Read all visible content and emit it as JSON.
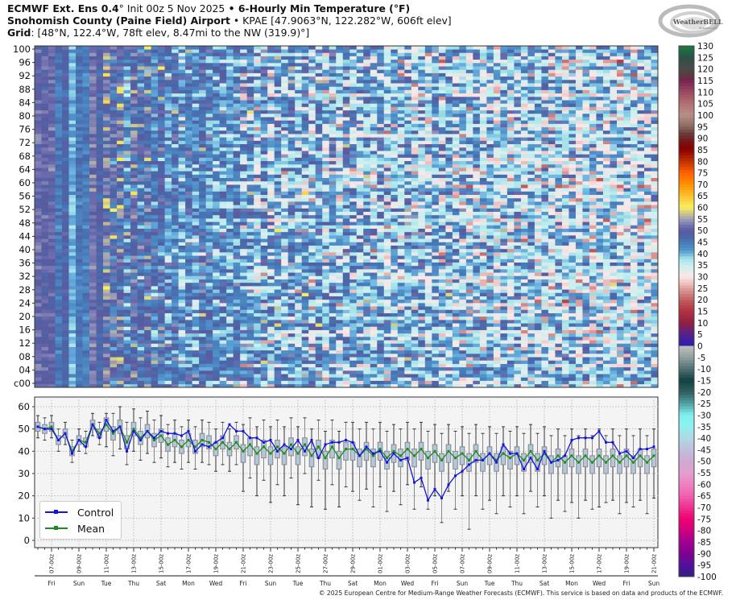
{
  "header": {
    "line1_bold": "ECMWF Ext.  Ens 0.4",
    "line1_deg": "°",
    "line1_init": " Init 00z 5 Nov 2025",
    "line1_sep": " • ",
    "line1_param": "6-Hourly Min Temperature (°F)",
    "line2_bold": "Snohomish County (Paine Field) Airport",
    "line2_rest": " • KPAE [47.9063°N, 122.282°W, 606ft elev]",
    "line3_bold": "Grid",
    "line3_rest": ": [48°N, 122.4°W, 78ft elev, 8.47mi to the NW (319.9)°]"
  },
  "logo": {
    "text": "WeatherBELL",
    "sub": "Analytics LLC"
  },
  "copyright": "© 2025 European Centre for Medium-Range Weather Forecasts (ECMWF). This service is based on data and products of the ECMWF.",
  "x_axis": {
    "date_ticks": [
      "07-00z",
      "09-00z",
      "11-00z",
      "13-00z",
      "15-00z",
      "17-00z",
      "19-00z",
      "21-00z",
      "23-00z",
      "25-00z",
      "27-00z",
      "29-00z",
      "01-00z",
      "03-00z",
      "05-00z",
      "07-00z",
      "09-00z",
      "11-00z",
      "13-00z",
      "15-00z",
      "17-00z",
      "19-00z",
      "21-00z"
    ],
    "day_labels": [
      "Fri",
      "Sun",
      "Tue",
      "Thu",
      "Sat",
      "Mon",
      "Wed",
      "Fri",
      "Sun",
      "Tue",
      "Thu",
      "Sat",
      "Mon",
      "Wed",
      "Fri",
      "Sun",
      "Tue",
      "Thu",
      "Sat",
      "Mon",
      "Wed",
      "Fri",
      "Sun"
    ]
  },
  "chart_data": [
    {
      "type": "heatmap",
      "y_tick_labels": [
        "100",
        "96",
        "92",
        "88",
        "84",
        "80",
        "76",
        "72",
        "68",
        "64",
        "60",
        "56",
        "52",
        "48",
        "44",
        "40",
        "36",
        "32",
        "28",
        "24",
        "20",
        "16",
        "12",
        "08",
        "04",
        "c00"
      ],
      "members": 101,
      "colorbar": {
        "ticks": [
          130,
          125,
          120,
          115,
          110,
          105,
          100,
          95,
          90,
          85,
          80,
          75,
          70,
          65,
          60,
          55,
          50,
          45,
          40,
          35,
          30,
          25,
          20,
          15,
          10,
          5,
          0,
          -5,
          -10,
          -15,
          -20,
          -25,
          -30,
          -35,
          -40,
          -45,
          -50,
          -55,
          -60,
          -65,
          -70,
          -75,
          -80,
          -85,
          -90,
          -95,
          -100
        ],
        "range": [
          -100,
          130
        ],
        "colorscale": [
          [
            130,
            "#1a7a40"
          ],
          [
            125,
            "#2e5045"
          ],
          [
            120,
            "#4a4a4a"
          ],
          [
            117,
            "#5a3a3a"
          ],
          [
            115,
            "#7a2050"
          ],
          [
            110,
            "#9a4a60"
          ],
          [
            105,
            "#b07070"
          ],
          [
            100,
            "#b89088"
          ],
          [
            95,
            "#8a6a60"
          ],
          [
            92,
            "#6a3a3a"
          ],
          [
            88,
            "#7a1010"
          ],
          [
            85,
            "#8a0000"
          ],
          [
            80,
            "#c03000"
          ],
          [
            75,
            "#ff6000"
          ],
          [
            70,
            "#ff9000"
          ],
          [
            65,
            "#ffc030"
          ],
          [
            60,
            "#f8f060"
          ],
          [
            57,
            "#c8c090"
          ],
          [
            55,
            "#a0a0b8"
          ],
          [
            52,
            "#7070b0"
          ],
          [
            50,
            "#5a5aa0"
          ],
          [
            47,
            "#4a68a8"
          ],
          [
            45,
            "#4878b8"
          ],
          [
            42,
            "#5090c8"
          ],
          [
            40,
            "#6ab0e0"
          ],
          [
            38,
            "#a0e0e8"
          ],
          [
            35,
            "#c8f0f0"
          ],
          [
            32,
            "#eaeaea"
          ],
          [
            30,
            "#fae8e8"
          ],
          [
            27,
            "#f0c0c0"
          ],
          [
            25,
            "#e0a0a0"
          ],
          [
            20,
            "#c06060"
          ],
          [
            15,
            "#b03040"
          ],
          [
            10,
            "#902040"
          ],
          [
            6,
            "#602080"
          ],
          [
            3,
            "#4020a0"
          ],
          [
            0.1,
            "#3020a0"
          ],
          [
            0,
            "#c0c0c0"
          ],
          [
            -5,
            "#90a0a0"
          ],
          [
            -10,
            "#507070"
          ],
          [
            -15,
            "#104040"
          ],
          [
            -20,
            "#306060"
          ],
          [
            -25,
            "#50a0a0"
          ],
          [
            -30,
            "#80f0f0"
          ],
          [
            -35,
            "#90f0f0"
          ],
          [
            -40,
            "#b0d8e0"
          ],
          [
            -45,
            "#c0c0e0"
          ],
          [
            -50,
            "#d0a8d0"
          ],
          [
            -55,
            "#e0a0d0"
          ],
          [
            -60,
            "#f080c0"
          ],
          [
            -65,
            "#f060b0"
          ],
          [
            -70,
            "#f03090"
          ],
          [
            -75,
            "#f00070"
          ],
          [
            -80,
            "#d00080"
          ],
          [
            -85,
            "#a00090"
          ],
          [
            -90,
            "#800090"
          ],
          [
            -95,
            "#5010a0"
          ],
          [
            -100,
            "#302080"
          ]
        ]
      }
    },
    {
      "type": "box-line",
      "ylim": [
        -2,
        64
      ],
      "y_ticks": [
        0,
        10,
        20,
        30,
        40,
        50,
        60
      ],
      "grid": true,
      "legend": "bottom-left",
      "time_step_hours": 12,
      "series": [
        {
          "name": "Control",
          "color": "#1414e0",
          "values": [
            51,
            50,
            50,
            45,
            48,
            39,
            45,
            42,
            52,
            46,
            54,
            49,
            51,
            40,
            49,
            45,
            49,
            46,
            49,
            48,
            48,
            47,
            49,
            40,
            43,
            42,
            44,
            46,
            52,
            49,
            49,
            46,
            46,
            44,
            45,
            40,
            43,
            41,
            45,
            40,
            45,
            37,
            43,
            44,
            44,
            45,
            44,
            38,
            42,
            39,
            40,
            35,
            39,
            36,
            37,
            26,
            28,
            18,
            23,
            19,
            25,
            29,
            31,
            34,
            36,
            36,
            39,
            35,
            43,
            39,
            39,
            32,
            37,
            32,
            40,
            35,
            36,
            38,
            45,
            46,
            46,
            46,
            49,
            44,
            44,
            39,
            40,
            37,
            41,
            41,
            42
          ]
        },
        {
          "name": "Mean",
          "color": "#1f8a1f",
          "values": [
            51,
            50,
            51,
            45,
            48,
            40,
            45,
            44,
            52,
            48,
            52,
            48,
            51,
            44,
            50,
            46,
            49,
            45,
            47,
            43,
            45,
            42,
            45,
            42,
            45,
            44,
            41,
            44,
            41,
            44,
            40,
            43,
            39,
            42,
            39,
            42,
            39,
            43,
            39,
            43,
            38,
            42,
            37,
            42,
            37,
            41,
            41,
            38,
            41,
            38,
            41,
            37,
            40,
            38,
            41,
            38,
            41,
            37,
            40,
            36,
            40,
            37,
            39,
            36,
            40,
            36,
            39,
            36,
            39,
            37,
            39,
            36,
            40,
            36,
            39,
            35,
            38,
            35,
            38,
            35,
            38,
            35,
            38,
            35,
            38,
            35,
            38,
            35,
            38,
            35,
            38
          ]
        }
      ],
      "boxes": {
        "q1": [
          49,
          48,
          49,
          43,
          46,
          38,
          43,
          42,
          50,
          46,
          49,
          45,
          48,
          41,
          47,
          43,
          46,
          42,
          44,
          40,
          42,
          39,
          42,
          39,
          42,
          41,
          38,
          41,
          38,
          41,
          35,
          38,
          34,
          37,
          34,
          37,
          34,
          38,
          34,
          38,
          33,
          37,
          32,
          37,
          32,
          36,
          36,
          33,
          36,
          33,
          36,
          32,
          35,
          33,
          36,
          33,
          36,
          32,
          35,
          31,
          35,
          32,
          34,
          31,
          35,
          31,
          34,
          31,
          34,
          32,
          34,
          31,
          35,
          31,
          34,
          30,
          33,
          30,
          33,
          30,
          33,
          30,
          33,
          30,
          33,
          30,
          33,
          30,
          33,
          30,
          33
        ],
        "q3": [
          53,
          52,
          53,
          47,
          50,
          42,
          47,
          46,
          54,
          50,
          55,
          51,
          54,
          47,
          53,
          49,
          52,
          48,
          50,
          46,
          48,
          45,
          48,
          45,
          48,
          47,
          44,
          47,
          44,
          47,
          43,
          46,
          42,
          45,
          42,
          45,
          42,
          46,
          42,
          46,
          41,
          45,
          40,
          45,
          40,
          44,
          44,
          41,
          44,
          41,
          44,
          40,
          43,
          41,
          44,
          41,
          44,
          40,
          43,
          39,
          43,
          40,
          42,
          39,
          43,
          39,
          42,
          39,
          42,
          40,
          42,
          39,
          43,
          39,
          42,
          38,
          41,
          38,
          41,
          38,
          41,
          38,
          41,
          38,
          41,
          38,
          41,
          38,
          41,
          38,
          41
        ],
        "whisker_low": [
          46,
          45,
          46,
          40,
          43,
          35,
          40,
          39,
          47,
          43,
          42,
          38,
          41,
          34,
          40,
          36,
          39,
          35,
          37,
          33,
          35,
          32,
          35,
          32,
          35,
          34,
          31,
          34,
          31,
          34,
          22,
          28,
          20,
          27,
          17,
          25,
          20,
          28,
          16,
          30,
          15,
          27,
          14,
          25,
          15,
          24,
          22,
          18,
          23,
          15,
          24,
          13,
          22,
          16,
          25,
          14,
          24,
          14,
          20,
          8,
          22,
          14,
          20,
          5,
          20,
          14,
          18,
          12,
          20,
          15,
          20,
          12,
          22,
          15,
          20,
          10,
          18,
          13,
          17,
          10,
          18,
          14,
          15,
          17,
          18,
          12,
          17,
          15,
          18,
          12,
          19
        ],
        "whisker_high": [
          56,
          55,
          56,
          50,
          53,
          45,
          50,
          49,
          57,
          53,
          57,
          57,
          60,
          53,
          59,
          55,
          58,
          54,
          56,
          52,
          54,
          51,
          54,
          51,
          54,
          53,
          50,
          53,
          50,
          53,
          52,
          55,
          51,
          54,
          51,
          54,
          51,
          55,
          51,
          55,
          50,
          54,
          49,
          54,
          49,
          53,
          53,
          50,
          53,
          50,
          53,
          49,
          52,
          50,
          53,
          50,
          53,
          49,
          52,
          48,
          52,
          49,
          51,
          48,
          52,
          48,
          51,
          48,
          51,
          49,
          51,
          48,
          52,
          48,
          51,
          47,
          50,
          47,
          50,
          47,
          50,
          47,
          50,
          47,
          50,
          47,
          50,
          47,
          50,
          47,
          50
        ]
      }
    }
  ]
}
